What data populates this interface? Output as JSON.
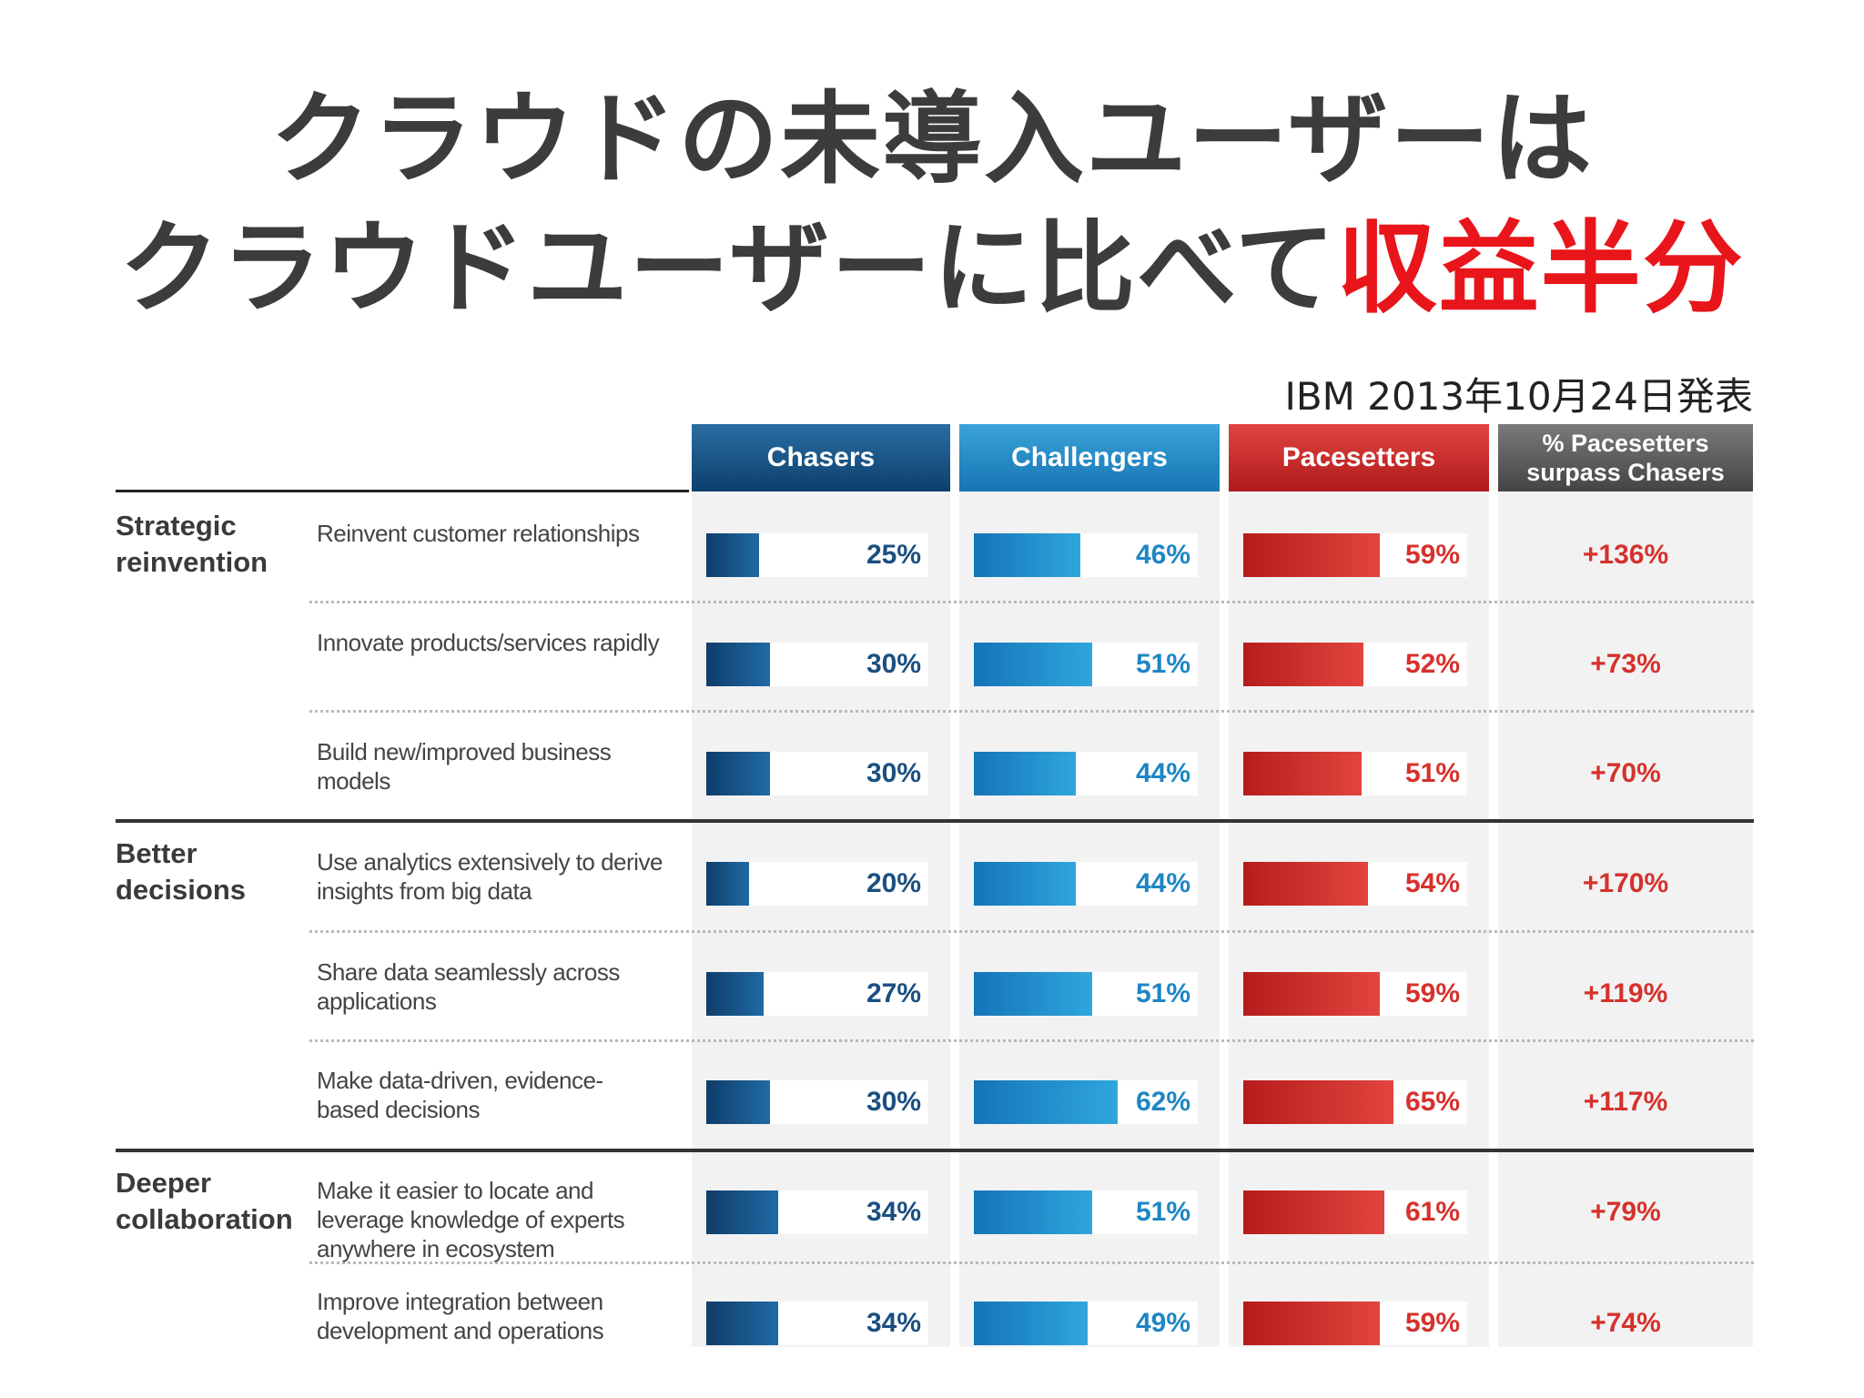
{
  "title": {
    "line1": "クラウドの未導入ユーザーは",
    "line2_prefix": "クラウドユーザーに比べて",
    "line2_highlight": "収益半分"
  },
  "source": "IBM 2013年10月24日発表",
  "colors": {
    "chasers": "#1b4f80",
    "challengers": "#1e86c4",
    "pacesetters": "#d6312c",
    "highlight": "#e8151b"
  },
  "chart_data": {
    "type": "table",
    "columns": [
      "Chasers",
      "Challengers",
      "Pacesetters",
      "% Pacesetters surpass Chasers"
    ],
    "groups": [
      {
        "label": "Strategic reinvention",
        "rows": [
          {
            "label": "Reinvent customer relationships",
            "chasers": 25,
            "challengers": 46,
            "pacesetters": 59,
            "surpass": "+136%"
          },
          {
            "label": "Innovate products/services rapidly",
            "chasers": 30,
            "challengers": 51,
            "pacesetters": 52,
            "surpass": "+73%"
          },
          {
            "label": "Build new/improved business models",
            "chasers": 30,
            "challengers": 44,
            "pacesetters": 51,
            "surpass": "+70%"
          }
        ]
      },
      {
        "label": "Better decisions",
        "rows": [
          {
            "label": "Use analytics extensively to derive insights from big data",
            "chasers": 20,
            "challengers": 44,
            "pacesetters": 54,
            "surpass": "+170%"
          },
          {
            "label": "Share data seamlessly across applications",
            "chasers": 27,
            "challengers": 51,
            "pacesetters": 59,
            "surpass": "+119%"
          },
          {
            "label": "Make data-driven, evidence-based decisions",
            "chasers": 30,
            "challengers": 62,
            "pacesetters": 65,
            "surpass": "+117%"
          }
        ]
      },
      {
        "label": "Deeper collaboration",
        "rows": [
          {
            "label": "Make it easier to locate and leverage knowledge of experts anywhere in ecosystem",
            "chasers": 34,
            "challengers": 51,
            "pacesetters": 61,
            "surpass": "+79%"
          },
          {
            "label": "Improve integration between development and operations",
            "chasers": 34,
            "challengers": 49,
            "pacesetters": 59,
            "surpass": "+74%"
          }
        ]
      }
    ]
  }
}
